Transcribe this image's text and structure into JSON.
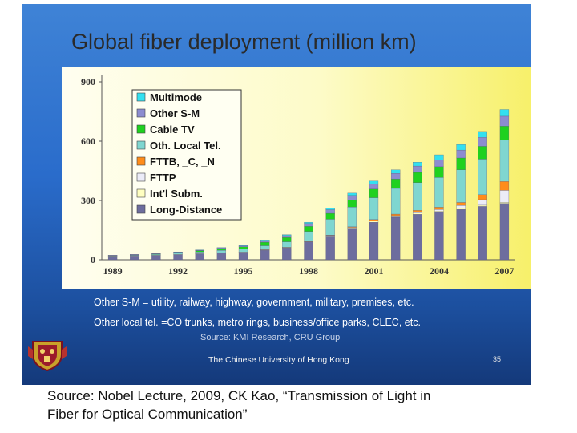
{
  "slide": {
    "title": "Global fiber deployment  (million km)",
    "notes": [
      "Other S-M = utility, railway, highway, government, military, premises, etc.",
      "Other local tel. =CO trunks, metro rings, business/office parks, CLEC, etc."
    ],
    "source_credit": "Source: KMI Research, CRU Group",
    "university": "The Chinese University of Hong Kong",
    "page_number": "35"
  },
  "caption": {
    "line1": "Source: Nobel Lecture, 2009, CK Kao, “Transmission of Light in",
    "line2": "Fiber for Optical Communication”"
  },
  "chart_data": {
    "type": "bar",
    "stacked": true,
    "title": "Global fiber deployment  (million km)",
    "xlabel": "",
    "ylabel": "",
    "ylim": [
      0,
      900
    ],
    "yticks": [
      0,
      300,
      600,
      900
    ],
    "categories": [
      "1989",
      "1990",
      "1991",
      "1992",
      "1993",
      "1994",
      "1995",
      "1996",
      "1997",
      "1998",
      "1999",
      "2000",
      "2001",
      "2002",
      "2003",
      "2004",
      "2005",
      "2006",
      "2007"
    ],
    "xtick_labels": [
      "1989",
      "1992",
      "1995",
      "1998",
      "2001",
      "2004",
      "2007"
    ],
    "legend_position": "top-left",
    "grid": false,
    "series": [
      {
        "name": "Long-Distance",
        "color": "#6d6d9e",
        "values": [
          18,
          20,
          22,
          26,
          30,
          35,
          38,
          48,
          60,
          90,
          120,
          160,
          190,
          215,
          230,
          240,
          255,
          270,
          285
        ]
      },
      {
        "name": "Int'l Subm.",
        "color": "#ffffc0",
        "values": [
          1,
          1,
          1,
          1,
          1,
          1,
          1,
          2,
          2,
          2,
          3,
          4,
          6,
          6,
          6,
          6,
          6,
          6,
          6
        ]
      },
      {
        "name": "FTTP",
        "color": "#ececf8",
        "values": [
          0,
          0,
          0,
          0,
          0,
          0,
          0,
          0,
          0,
          0,
          0,
          0,
          2,
          2,
          4,
          8,
          14,
          28,
          60
        ]
      },
      {
        "name": "FTTB, _C, _N",
        "color": "#ff8c1a",
        "values": [
          0,
          0,
          0,
          0,
          0,
          0,
          0,
          1,
          1,
          1,
          2,
          3,
          6,
          8,
          10,
          12,
          15,
          25,
          45
        ]
      },
      {
        "name": "Oth. Local Tel.",
        "color": "#7fd6d0",
        "values": [
          2,
          3,
          4,
          6,
          9,
          12,
          15,
          20,
          28,
          50,
          80,
          100,
          110,
          130,
          140,
          150,
          165,
          180,
          210
        ]
      },
      {
        "name": "Cable TV",
        "color": "#1fd11f",
        "values": [
          1,
          2,
          3,
          4,
          6,
          8,
          12,
          18,
          22,
          26,
          30,
          36,
          44,
          48,
          52,
          55,
          60,
          65,
          70
        ]
      },
      {
        "name": "Other S-M",
        "color": "#8c8cd0",
        "values": [
          1,
          1,
          2,
          2,
          3,
          4,
          5,
          7,
          9,
          14,
          18,
          22,
          25,
          28,
          32,
          35,
          40,
          45,
          50
        ]
      },
      {
        "name": "Multimode",
        "color": "#33e0f0",
        "values": [
          0,
          0,
          0,
          1,
          1,
          2,
          3,
          4,
          5,
          7,
          9,
          12,
          15,
          18,
          20,
          25,
          28,
          30,
          34
        ]
      }
    ]
  }
}
